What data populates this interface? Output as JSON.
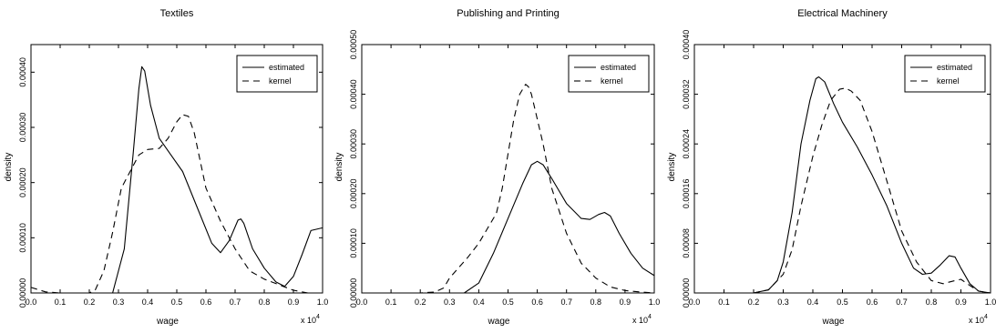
{
  "chart_data": [
    {
      "type": "line",
      "title": "Textiles",
      "xlabel": "wage",
      "ylabel": "density",
      "x_multiplier": "x 10^4",
      "xlim": [
        0,
        1.0
      ],
      "ylim": [
        0,
        0.00045
      ],
      "xticks": [
        "0.0",
        "0.1",
        "0.2",
        "0.3",
        "0.4",
        "0.5",
        "0.6",
        "0.7",
        "0.8",
        "0.9",
        "1.0"
      ],
      "yticks": [
        "0.00000",
        "0.00010",
        "0.00020",
        "0.00030",
        "0.00040"
      ],
      "ytick_values": [
        0,
        0.0001,
        0.0002,
        0.0003,
        0.0004
      ],
      "legend": {
        "position": "top-right",
        "entries": [
          "estimated",
          "kernel"
        ]
      },
      "series": [
        {
          "name": "estimated",
          "style": "solid",
          "x": [
            0.28,
            0.32,
            0.35,
            0.37,
            0.38,
            0.39,
            0.41,
            0.44,
            0.48,
            0.52,
            0.57,
            0.62,
            0.65,
            0.68,
            0.71,
            0.72,
            0.73,
            0.76,
            0.8,
            0.84,
            0.87,
            0.9,
            0.93,
            0.96,
            1.0
          ],
          "y": [
            0.0,
            8e-05,
            0.00025,
            0.00037,
            0.00041,
            0.000402,
            0.00034,
            0.00028,
            0.00025,
            0.00022,
            0.000155,
            9e-05,
            7.3e-05,
            9.5e-05,
            0.000132,
            0.000134,
            0.000126,
            8e-05,
            4.5e-05,
            2e-05,
            1.2e-05,
            3e-05,
            7e-05,
            0.000113,
            0.000118
          ]
        },
        {
          "name": "kernel",
          "style": "dashed",
          "x": [
            0.0,
            0.05,
            0.1,
            0.15,
            0.2,
            0.22,
            0.25,
            0.28,
            0.31,
            0.34,
            0.37,
            0.4,
            0.44,
            0.47,
            0.5,
            0.52,
            0.54,
            0.56,
            0.6,
            0.65,
            0.7,
            0.75,
            0.8,
            0.85,
            0.9,
            0.95,
            1.0
          ],
          "y": [
            1e-05,
            2e-06,
            0.0,
            0.0,
            0.0,
            5e-06,
            4e-05,
            0.00011,
            0.00019,
            0.00022,
            0.00025,
            0.00026,
            0.000262,
            0.00028,
            0.00031,
            0.000323,
            0.00032,
            0.00029,
            0.00019,
            0.00013,
            8e-05,
            4e-05,
            2.5e-05,
            1.5e-05,
            5e-06,
            0.0,
            0.0
          ]
        }
      ]
    },
    {
      "type": "line",
      "title": "Publishing and Printing",
      "xlabel": "wage",
      "ylabel": "density",
      "x_multiplier": "x 10^4",
      "xlim": [
        0,
        1.0
      ],
      "ylim": [
        0,
        0.0005
      ],
      "xticks": [
        "0.0",
        "0.1",
        "0.2",
        "0.3",
        "0.4",
        "0.5",
        "0.6",
        "0.7",
        "0.8",
        "0.9",
        "1.0"
      ],
      "yticks": [
        "0.00000",
        "0.00010",
        "0.00020",
        "0.00030",
        "0.00040",
        "0.00050"
      ],
      "ytick_values": [
        0,
        0.0001,
        0.0002,
        0.0003,
        0.0004,
        0.0005
      ],
      "legend": {
        "position": "top-right",
        "entries": [
          "estimated",
          "kernel"
        ]
      },
      "series": [
        {
          "name": "estimated",
          "style": "solid",
          "x": [
            0.35,
            0.4,
            0.45,
            0.5,
            0.55,
            0.58,
            0.6,
            0.62,
            0.65,
            0.7,
            0.75,
            0.78,
            0.81,
            0.83,
            0.85,
            0.88,
            0.92,
            0.96,
            1.0
          ],
          "y": [
            0.0,
            2e-05,
            8e-05,
            0.00015,
            0.00022,
            0.000258,
            0.000265,
            0.000258,
            0.00023,
            0.00018,
            0.00015,
            0.000148,
            0.000158,
            0.000162,
            0.000155,
            0.00012,
            8e-05,
            5e-05,
            3.5e-05
          ]
        },
        {
          "name": "kernel",
          "style": "dashed",
          "x": [
            0.0,
            0.1,
            0.2,
            0.25,
            0.28,
            0.3,
            0.33,
            0.36,
            0.4,
            0.43,
            0.46,
            0.48,
            0.5,
            0.52,
            0.54,
            0.56,
            0.57,
            0.58,
            0.6,
            0.62,
            0.65,
            0.7,
            0.75,
            0.8,
            0.85,
            0.9,
            0.95,
            1.0
          ],
          "y": [
            0.0,
            0.0,
            0.0,
            2e-06,
            1e-05,
            3e-05,
            5e-05,
            7e-05,
            0.0001,
            0.00013,
            0.00016,
            0.00021,
            0.00028,
            0.00035,
            0.0004,
            0.00042,
            0.000415,
            0.0004,
            0.00035,
            0.0003,
            0.00021,
            0.00012,
            6e-05,
            3e-05,
            1.2e-05,
            5e-06,
            2e-06,
            0.0
          ]
        }
      ]
    },
    {
      "type": "line",
      "title": "Electrical Machinery",
      "xlabel": "wage",
      "ylabel": "density",
      "x_multiplier": "x 10^4",
      "xlim": [
        0,
        1.0
      ],
      "ylim": [
        0,
        0.0004
      ],
      "xticks": [
        "0.0",
        "0.1",
        "0.2",
        "0.3",
        "0.4",
        "0.5",
        "0.6",
        "0.7",
        "0.8",
        "0.9",
        "1.0"
      ],
      "yticks": [
        "0.00000",
        "0.00008",
        "0.00016",
        "0.00024",
        "0.00032",
        "0.00040"
      ],
      "ytick_values": [
        0,
        8e-05,
        0.00016,
        0.00024,
        0.00032,
        0.0004
      ],
      "legend": {
        "position": "top-right",
        "entries": [
          "estimated",
          "kernel"
        ]
      },
      "series": [
        {
          "name": "estimated",
          "style": "solid",
          "x": [
            0.2,
            0.25,
            0.28,
            0.3,
            0.33,
            0.36,
            0.39,
            0.41,
            0.42,
            0.44,
            0.47,
            0.5,
            0.55,
            0.6,
            0.65,
            0.7,
            0.74,
            0.77,
            0.8,
            0.83,
            0.86,
            0.88,
            0.9,
            0.93,
            0.96,
            1.0
          ],
          "y": [
            0.0,
            5e-06,
            2e-05,
            5e-05,
            0.00013,
            0.00024,
            0.00031,
            0.000345,
            0.000348,
            0.00034,
            0.000305,
            0.000275,
            0.000235,
            0.00019,
            0.00014,
            8e-05,
            4e-05,
            3e-05,
            3.2e-05,
            4.5e-05,
            6e-05,
            5.8e-05,
            4e-05,
            1.5e-05,
            3e-06,
            0.0
          ]
        },
        {
          "name": "kernel",
          "style": "dashed",
          "x": [
            0.2,
            0.25,
            0.3,
            0.33,
            0.36,
            0.4,
            0.43,
            0.46,
            0.49,
            0.51,
            0.53,
            0.56,
            0.6,
            0.65,
            0.7,
            0.75,
            0.8,
            0.84,
            0.88,
            0.9,
            0.93,
            0.96,
            1.0
          ],
          "y": [
            0.0,
            5e-06,
            3e-05,
            7e-05,
            0.00014,
            0.00022,
            0.00027,
            0.00031,
            0.000328,
            0.00033,
            0.000325,
            0.00031,
            0.00026,
            0.00018,
            0.0001,
            5e-05,
            2e-05,
            1.5e-05,
            2e-05,
            2.2e-05,
            1.2e-05,
            3e-06,
            0.0
          ]
        }
      ]
    }
  ]
}
